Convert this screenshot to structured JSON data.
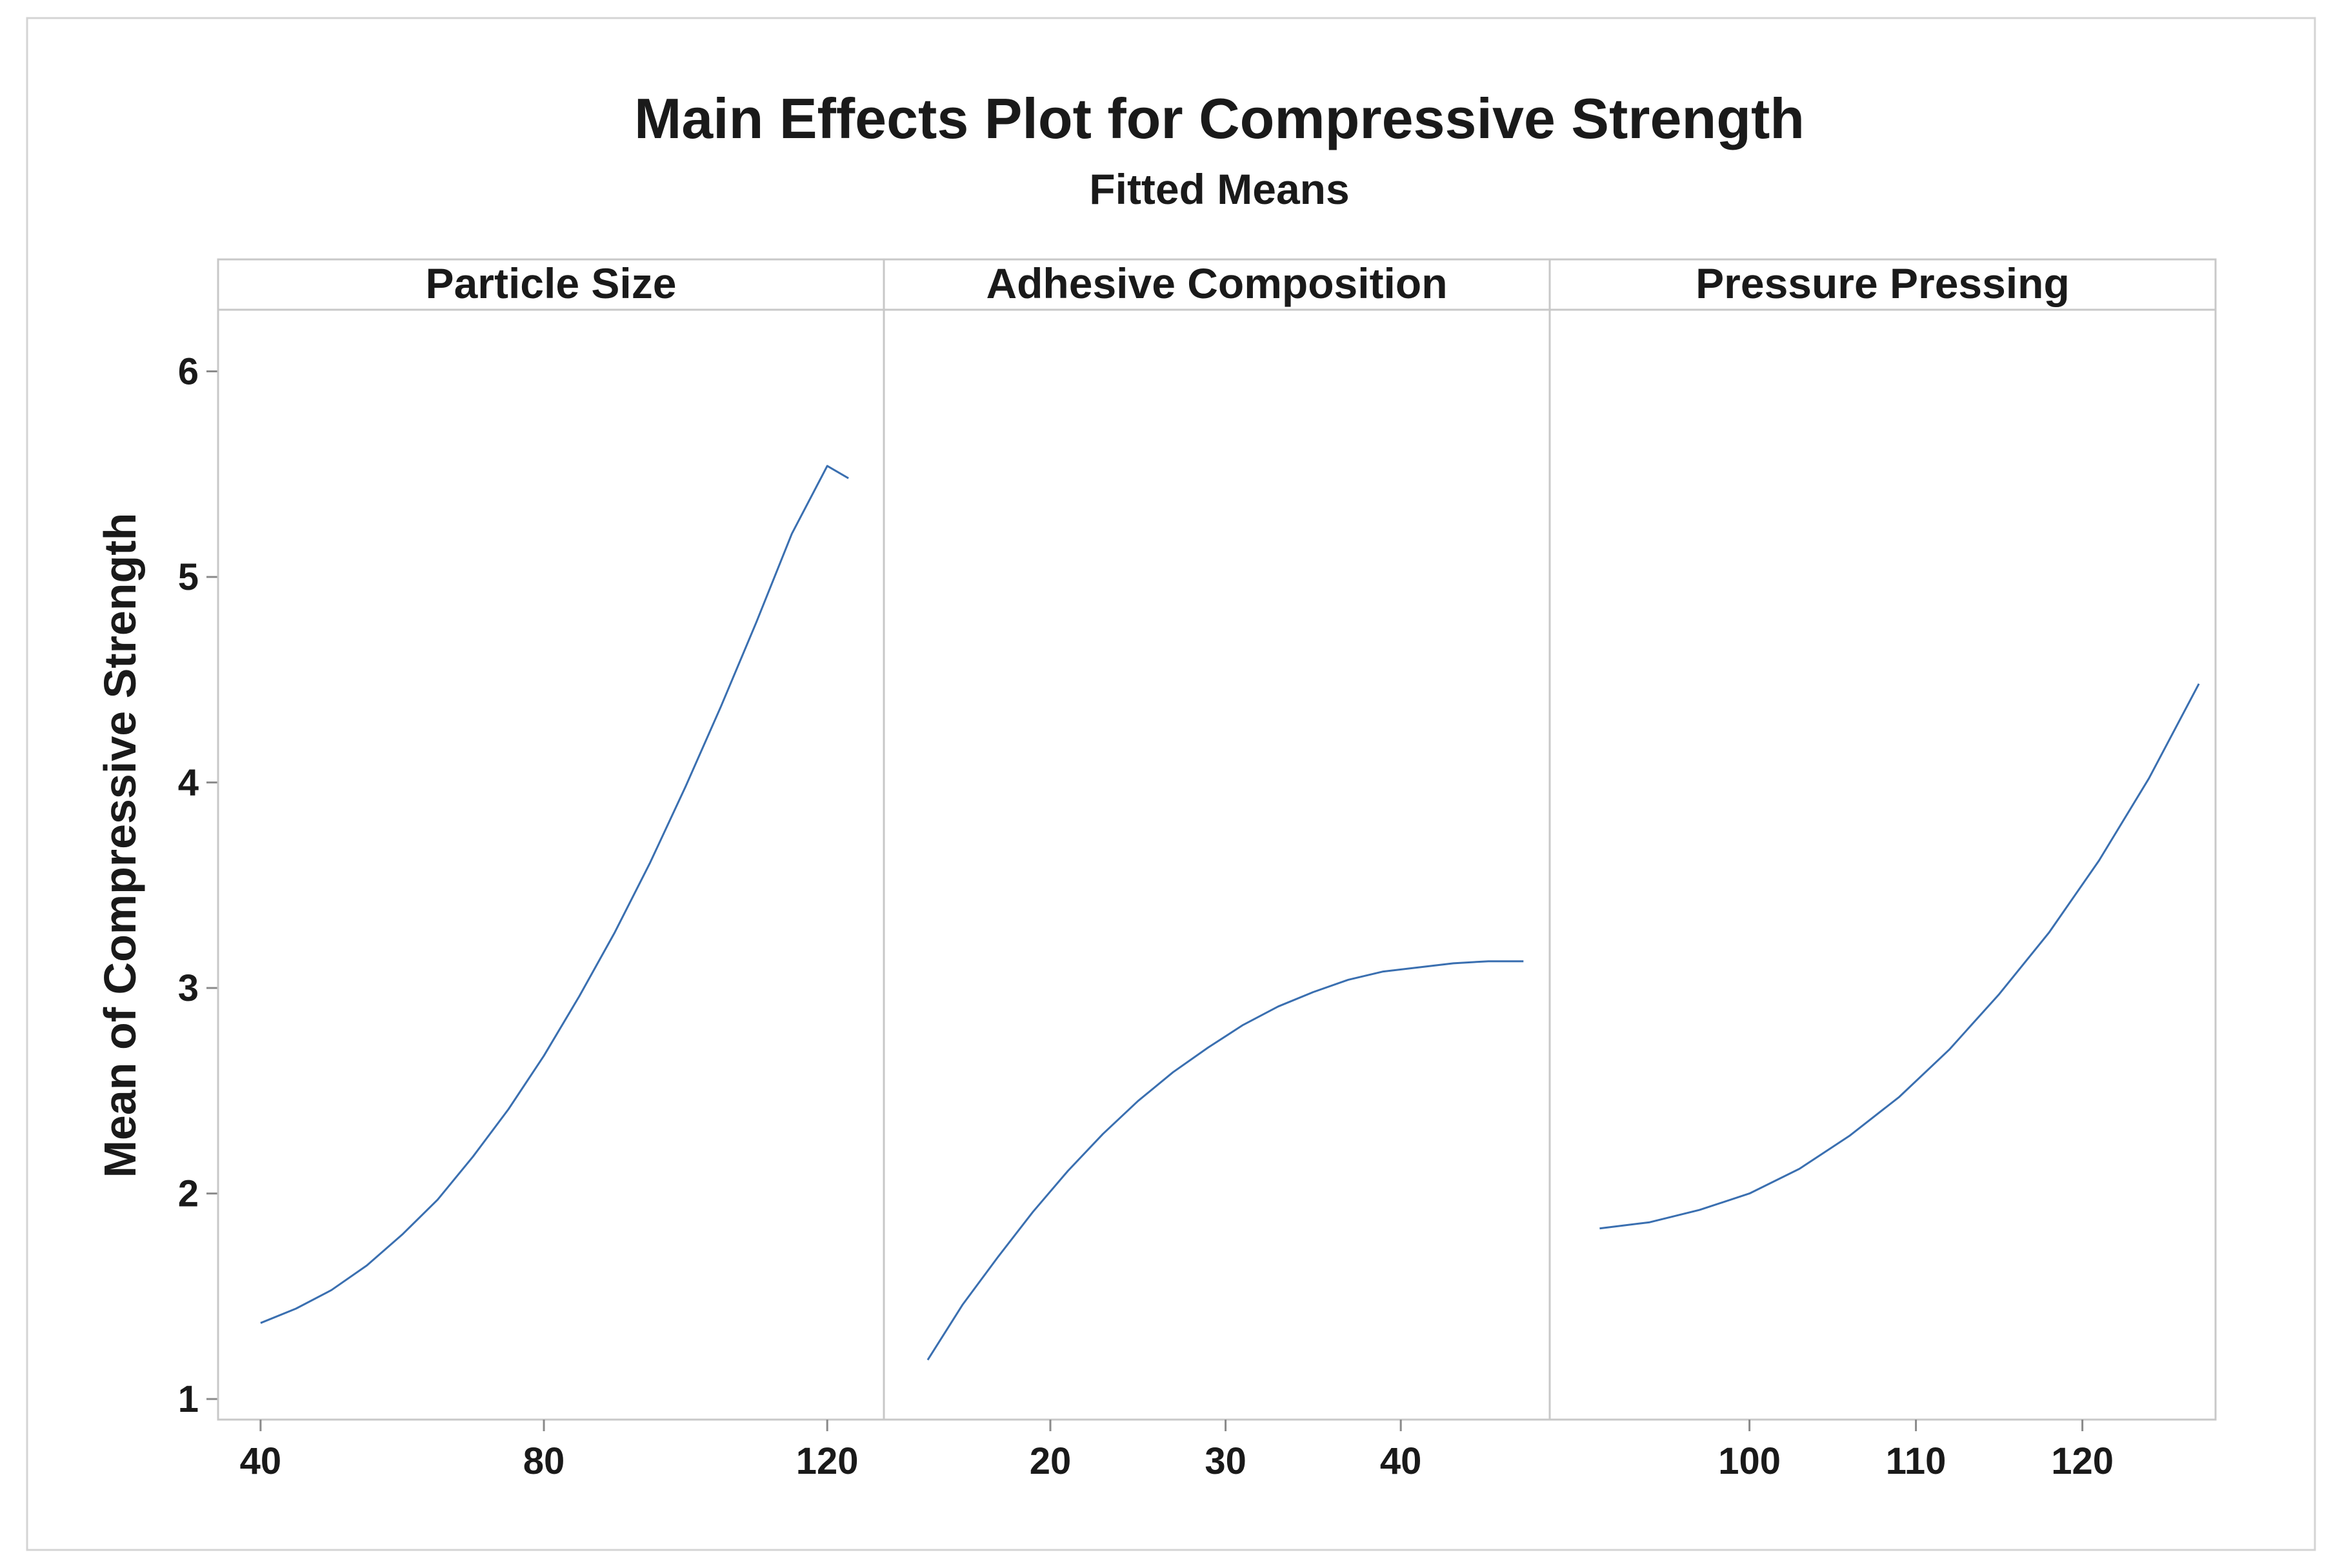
{
  "chart_data": {
    "type": "line",
    "title": "Main Effects Plot for Compressive Strength",
    "subtitle": "Fitted Means",
    "ylabel": "Mean of Compressive Strength",
    "ylim": [
      0.9,
      6.3
    ],
    "yticks": [
      1,
      2,
      3,
      4,
      5,
      6
    ],
    "line_color": "#3a6fb0",
    "panels": [
      {
        "name": "Particle Size",
        "xlim": [
          34,
          128
        ],
        "xticks": [
          40,
          80,
          120
        ],
        "x": [
          40,
          45,
          50,
          55,
          60,
          65,
          70,
          75,
          80,
          85,
          90,
          95,
          100,
          105,
          110,
          115,
          120,
          123
        ],
        "y": [
          1.37,
          1.44,
          1.53,
          1.65,
          1.8,
          1.97,
          2.18,
          2.41,
          2.67,
          2.96,
          3.27,
          3.61,
          3.98,
          4.37,
          4.78,
          5.21,
          5.54,
          5.48
        ]
      },
      {
        "name": "Adhesive Composition",
        "xlim": [
          10.5,
          48.5
        ],
        "xticks": [
          20,
          30,
          40
        ],
        "x": [
          13,
          15,
          17,
          19,
          21,
          23,
          25,
          27,
          29,
          31,
          33,
          35,
          37,
          39,
          41,
          43,
          45,
          47
        ],
        "y": [
          1.19,
          1.46,
          1.69,
          1.91,
          2.11,
          2.29,
          2.45,
          2.59,
          2.71,
          2.82,
          2.91,
          2.98,
          3.04,
          3.08,
          3.1,
          3.12,
          3.13,
          3.13
        ]
      },
      {
        "name": "Pressure Pressing",
        "xlim": [
          88,
          128
        ],
        "xticks": [
          100,
          110,
          120
        ],
        "x": [
          91,
          94,
          97,
          100,
          103,
          106,
          109,
          112,
          115,
          118,
          121,
          124,
          127
        ],
        "y": [
          1.83,
          1.86,
          1.92,
          2.0,
          2.12,
          2.28,
          2.47,
          2.7,
          2.97,
          3.27,
          3.62,
          4.02,
          4.48
        ]
      }
    ]
  }
}
